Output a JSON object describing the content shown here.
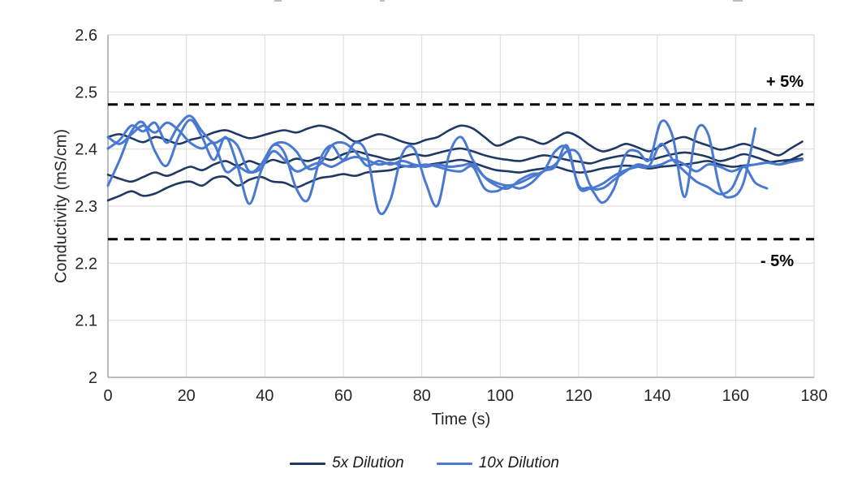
{
  "chart_data": {
    "type": "line",
    "title": "",
    "xlabel": "Time (s)",
    "ylabel": "Conductivity (mS/cm)",
    "xlim": [
      0,
      180
    ],
    "ylim": [
      2.0,
      2.6
    ],
    "x_ticks": [
      0,
      20,
      40,
      60,
      80,
      100,
      120,
      140,
      160,
      180
    ],
    "x_tick_labels": [
      "0",
      "20",
      "40",
      "60",
      "80",
      "100",
      "120",
      "140",
      "160",
      "180"
    ],
    "y_ticks": [
      2.0,
      2.1,
      2.2,
      2.3,
      2.4,
      2.5,
      2.6
    ],
    "y_tick_labels": [
      "2",
      "2.1",
      "2.2",
      "2.3",
      "2.4",
      "2.5",
      "2.6"
    ],
    "grid": true,
    "legend_position": "bottom",
    "limit_lines": [
      {
        "value": 2.478,
        "label": "+ 5%",
        "color": "#000000",
        "style": "dashed"
      },
      {
        "value": 2.242,
        "label": "- 5%",
        "color": "#000000",
        "style": "dashed"
      }
    ],
    "legend": {
      "entries": [
        {
          "label": "5x Dilution",
          "color": "#1f3864"
        },
        {
          "label": "10x Dilution",
          "color": "#4a79d2"
        }
      ]
    },
    "series": [
      {
        "group": "5x Dilution",
        "name": "5x Dilution run 1",
        "color": "#1f3864",
        "t_start": 0,
        "t_step": 3,
        "values": [
          2.31,
          2.318,
          2.326,
          2.318,
          2.322,
          2.332,
          2.34,
          2.343,
          2.336,
          2.349,
          2.351,
          2.336,
          2.346,
          2.351,
          2.343,
          2.341,
          2.333,
          2.341,
          2.349,
          2.352,
          2.356,
          2.353,
          2.359,
          2.361,
          2.363,
          2.369,
          2.371,
          2.372,
          2.375,
          2.378,
          2.381,
          2.376,
          2.369,
          2.363,
          2.361,
          2.359,
          2.363,
          2.366,
          2.369,
          2.363,
          2.359,
          2.361,
          2.366,
          2.369,
          2.371,
          2.369,
          2.366,
          2.369,
          2.371,
          2.373,
          2.376,
          2.379,
          2.373,
          2.369,
          2.371,
          2.373,
          2.376,
          2.379,
          2.381,
          2.383
        ]
      },
      {
        "group": "5x Dilution",
        "name": "5x Dilution run 2",
        "color": "#1f3864",
        "t_start": 0,
        "t_step": 3,
        "values": [
          2.355,
          2.348,
          2.343,
          2.351,
          2.359,
          2.353,
          2.361,
          2.369,
          2.363,
          2.373,
          2.379,
          2.371,
          2.379,
          2.373,
          2.381,
          2.376,
          2.383,
          2.379,
          2.385,
          2.381,
          2.391,
          2.396,
          2.391,
          2.386,
          2.381,
          2.386,
          2.391,
          2.388,
          2.393,
          2.398,
          2.401,
          2.396,
          2.389,
          2.384,
          2.381,
          2.379,
          2.384,
          2.389,
          2.386,
          2.381,
          2.378,
          2.375,
          2.381,
          2.386,
          2.389,
          2.386,
          2.381,
          2.386,
          2.391,
          2.394,
          2.391,
          2.386,
          2.379,
          2.384,
          2.391,
          2.386,
          2.379,
          2.373,
          2.381,
          2.391
        ]
      },
      {
        "group": "5x Dilution",
        "name": "5x Dilution run 3",
        "color": "#1f3864",
        "t_start": 0,
        "t_step": 3,
        "values": [
          2.421,
          2.426,
          2.419,
          2.412,
          2.421,
          2.416,
          2.409,
          2.416,
          2.421,
          2.429,
          2.433,
          2.426,
          2.419,
          2.423,
          2.429,
          2.433,
          2.429,
          2.436,
          2.441,
          2.436,
          2.426,
          2.413,
          2.419,
          2.426,
          2.421,
          2.413,
          2.409,
          2.416,
          2.421,
          2.433,
          2.441,
          2.436,
          2.421,
          2.406,
          2.413,
          2.421,
          2.416,
          2.409,
          2.419,
          2.429,
          2.421,
          2.406,
          2.396,
          2.401,
          2.409,
          2.403,
          2.396,
          2.406,
          2.416,
          2.421,
          2.413,
          2.406,
          2.399,
          2.403,
          2.409,
          2.403,
          2.396,
          2.389,
          2.401,
          2.413
        ]
      },
      {
        "group": "10x Dilution",
        "name": "10x Dilution run 1",
        "color": "#4a79d2",
        "t_start": 0,
        "t_step": 3,
        "values": [
          2.336,
          2.381,
          2.431,
          2.446,
          2.396,
          2.371,
          2.421,
          2.451,
          2.421,
          2.381,
          2.421,
          2.371,
          2.304,
          2.361,
          2.406,
          2.393,
          2.331,
          2.311,
          2.381,
          2.406,
          2.381,
          2.411,
          2.391,
          2.291,
          2.311,
          2.391,
          2.401,
          2.341,
          2.301,
          2.391,
          2.421,
          2.381,
          2.351,
          2.336,
          2.331,
          2.346,
          2.356,
          2.361,
          2.396,
          2.401,
          2.336,
          2.331,
          2.306,
          2.331,
          2.391,
          2.396,
          2.381,
          2.448,
          2.421,
          2.316,
          2.431,
          2.426,
          2.331,
          2.316,
          2.341,
          2.436
        ]
      },
      {
        "group": "10x Dilution",
        "name": "10x Dilution run 2",
        "color": "#4a79d2",
        "t_start": 0,
        "t_step": 3,
        "values": [
          2.401,
          2.416,
          2.441,
          2.431,
          2.446,
          2.411,
          2.441,
          2.458,
          2.431,
          2.411,
          2.419,
          2.406,
          2.361,
          2.373,
          2.406,
          2.411,
          2.396,
          2.366,
          2.373,
          2.406,
          2.411,
          2.396,
          2.371,
          2.379,
          2.373,
          2.379,
          2.373,
          2.369,
          2.373,
          2.369,
          2.371,
          2.373,
          2.351,
          2.341,
          2.336,
          2.341,
          2.351,
          2.361,
          2.373,
          2.396,
          2.391,
          2.336,
          2.331,
          2.346,
          2.361,
          2.373,
          2.369,
          2.373,
          2.381,
          2.373,
          2.361,
          2.373,
          2.369,
          2.361,
          2.369,
          2.373,
          2.376,
          2.373,
          2.377,
          2.381
        ]
      },
      {
        "group": "10x Dilution",
        "name": "10x Dilution run 3",
        "color": "#4a79d2",
        "t_start": 0,
        "t_step": 3,
        "values": [
          2.421,
          2.409,
          2.426,
          2.441,
          2.429,
          2.446,
          2.433,
          2.411,
          2.401,
          2.409,
          2.361,
          2.369,
          2.359,
          2.366,
          2.396,
          2.381,
          2.361,
          2.369,
          2.376,
          2.369,
          2.379,
          2.386,
          2.381,
          2.373,
          2.376,
          2.371,
          2.369,
          2.373,
          2.369,
          2.363,
          2.361,
          2.369,
          2.331,
          2.326,
          2.336,
          2.331,
          2.341,
          2.361,
          2.369,
          2.406,
          2.333,
          2.331,
          2.339,
          2.353,
          2.363,
          2.369,
          2.371,
          2.409,
          2.381,
          2.361,
          2.343,
          2.333,
          2.321,
          2.331,
          2.369,
          2.341,
          2.331
        ]
      }
    ],
    "colors": {
      "grid": "#d9d9d9",
      "border": "#d2d2d2",
      "axis": "#a6a6a6",
      "tick_text": "#262626"
    }
  }
}
